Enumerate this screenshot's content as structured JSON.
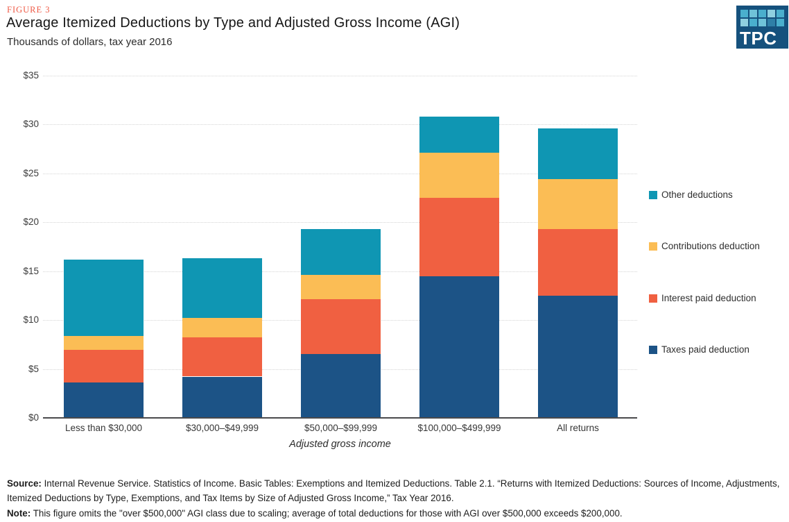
{
  "header": {
    "figure_label": "FIGURE 3",
    "title": "Average Itemized Deductions by Type and Adjusted Gross Income (AGI)",
    "subtitle": "Thousands of dollars, tax year 2016",
    "logo_text": "TPC"
  },
  "logo": {
    "bg_color": "#15517d",
    "square_colors": [
      "#4aafcd",
      "#6fc2d8",
      "#4aafcd",
      "#8fd0e0",
      "#4aafcd",
      "#8fd0e0",
      "#4aafcd",
      "#6fc2d8",
      "#2f7fa7",
      "#4aafcd"
    ]
  },
  "chart_data": {
    "type": "bar",
    "stacked": true,
    "title": "Average Itemized Deductions by Type and Adjusted Gross Income (AGI)",
    "subtitle": "Thousands of dollars, tax year 2016",
    "xlabel": "Adjusted gross income",
    "ylabel": "Thousands of dollars",
    "ylim": [
      0,
      35
    ],
    "ytick_step": 5,
    "ytick_labels": [
      "$0",
      "$5",
      "$10",
      "$15",
      "$20",
      "$25",
      "$30",
      "$35"
    ],
    "grid": "horizontal-dotted",
    "legend_position": "right",
    "categories": [
      "Less than $30,000",
      "$30,000–$49,999",
      "$50,000–$99,999",
      "$100,000–$499,999",
      "All returns"
    ],
    "series": [
      {
        "name": "Taxes paid deduction",
        "color": "#1c5386",
        "values": [
          3.6,
          4.2,
          6.5,
          14.5,
          12.5
        ]
      },
      {
        "name": "Interest paid deduction",
        "color": "#f06041",
        "values": [
          3.4,
          4.0,
          5.6,
          8.0,
          6.8
        ]
      },
      {
        "name": "Contributions deduction",
        "color": "#fbbd55",
        "values": [
          1.4,
          2.0,
          2.5,
          4.6,
          5.1
        ]
      },
      {
        "name": "Other deductions",
        "color": "#0f96b3",
        "values": [
          7.8,
          6.1,
          4.7,
          3.7,
          5.2
        ]
      }
    ],
    "totals": [
      16.2,
      16.3,
      19.3,
      30.8,
      29.6
    ],
    "legend_order_top_to_bottom": [
      "Other deductions",
      "Contributions deduction",
      "Interest paid deduction",
      "Taxes paid deduction"
    ]
  },
  "footer": {
    "source_label": "Source:",
    "source_text": " Internal Revenue Service. Statistics of Income. Basic Tables: Exemptions and Itemized Deductions. Table 2.1. “Returns with Itemized Deductions: Sources of Income, Adjustments, Itemized Deductions by Type, Exemptions, and Tax Items by Size of Adjusted Gross Income,” Tax Year 2016.",
    "note_label": "Note:",
    "note_text": " This figure omits the \"over $500,000\" AGI class due to scaling; average of total deductions for those with AGI over $500,000 exceeds $200,000."
  }
}
